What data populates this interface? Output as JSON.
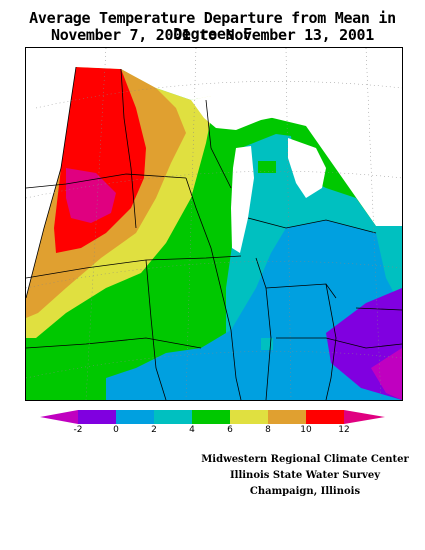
{
  "title_line1": "Average Temperature Departure from Mean in Degrees F",
  "title_line2": "November 7, 2001 to November 13, 2001",
  "legend": {
    "ticks": [
      "-2",
      "0",
      "2",
      "4",
      "6",
      "8",
      "10",
      "12"
    ],
    "colors": {
      "below_-2": "#c000c0",
      "-2_to_0": "#8000e0",
      "0_to_2": "#00a0e0",
      "2_to_4": "#00c0c0",
      "4_to_6": "#00c800",
      "6_to_8": "#e0e040",
      "8_to_10": "#e0a030",
      "10_to_12": "#ff0000",
      "above_12": "#e00080"
    }
  },
  "credits": {
    "line1": "Midwestern Regional Climate Center",
    "line2": "Illinois State Water Survey",
    "line3": "Champaign, Illinois"
  }
}
